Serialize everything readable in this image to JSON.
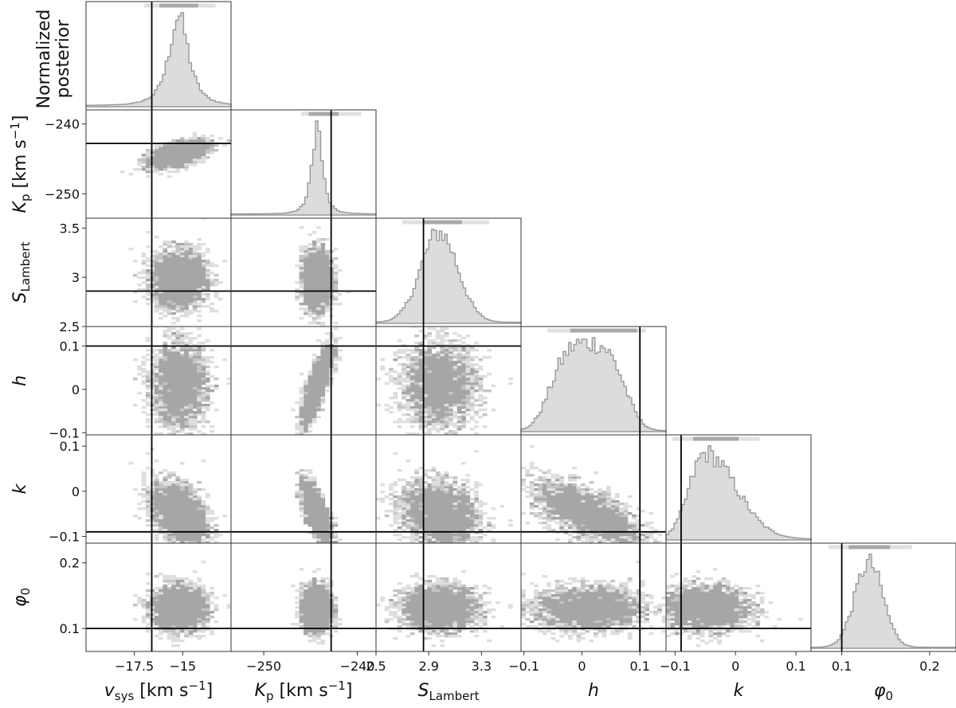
{
  "chart_data": {
    "type": "corner",
    "y_label_top": "Normalized\nposterior",
    "colors": {
      "hist_fill": "#dcdcdc",
      "hist_line": "#9a9a9a",
      "density_dark": "#a6a6a6",
      "density_light": "#dedede",
      "truth": "#000000"
    },
    "params": [
      {
        "key": "vsys",
        "label": {
          "main": "v",
          "sub": "sys",
          "unit": " [km s",
          "sup": "−1",
          "close": "]",
          "italic": true
        },
        "range": [
          -20.0,
          -12.5
        ],
        "ticks": [
          -17.5,
          -15.0
        ],
        "truth": -16.6,
        "mean": -15.2,
        "sd": 0.85,
        "hist_kind": "peaked",
        "bar_light": [
          -17.0,
          -13.3
        ],
        "bar_dark": [
          -16.2,
          -14.2
        ]
      },
      {
        "key": "Kp",
        "label": {
          "main": "K",
          "sub": "p",
          "unit": " [km s",
          "sup": "−1",
          "close": "]",
          "italic": true
        },
        "range": [
          -253.5,
          -238.0
        ],
        "ticks": [
          -250,
          -240
        ],
        "truth": -242.8,
        "mean": -244.3,
        "sd": 0.9,
        "hist_kind": "peaked",
        "bar_light": [
          -246.0,
          -239.6
        ],
        "bar_dark": [
          -245.2,
          -242.0
        ]
      },
      {
        "key": "SLambert",
        "label": {
          "main": "S",
          "sub": "Lambert",
          "unit": "",
          "sup": "",
          "close": "",
          "italic": true
        },
        "range": [
          2.5,
          3.6
        ],
        "ticks": [
          2.5,
          2.9,
          3.3
        ],
        "truth": 2.86,
        "mean": 2.98,
        "sd": 0.14,
        "hist_kind": "gauss",
        "bar_light": [
          2.7,
          3.36
        ],
        "bar_dark": [
          2.86,
          3.15
        ]
      },
      {
        "key": "h",
        "label": {
          "main": "h",
          "sub": "",
          "unit": "",
          "sup": "",
          "close": "",
          "italic": true
        },
        "range": [
          -0.105,
          0.145
        ],
        "ticks": [
          -0.1,
          0.0,
          0.1
        ],
        "truth": 0.1,
        "mean": 0.01,
        "sd": 0.045,
        "hist_kind": "broad",
        "bar_light": [
          -0.06,
          0.11
        ],
        "bar_dark": [
          -0.02,
          0.095
        ]
      },
      {
        "key": "k",
        "label": {
          "main": "k",
          "sub": "",
          "unit": "",
          "sup": "",
          "close": "",
          "italic": true
        },
        "range": [
          -0.115,
          0.125
        ],
        "ticks": [
          -0.1,
          0.0,
          0.1
        ],
        "truth": -0.09,
        "mean": -0.05,
        "sd": 0.035,
        "hist_kind": "skew",
        "bar_light": [
          -0.105,
          0.04
        ],
        "bar_dark": [
          -0.07,
          0.005
        ]
      },
      {
        "key": "phi0",
        "label": {
          "main": "φ",
          "sub": "0",
          "unit": "",
          "sup": "",
          "close": "",
          "italic": true
        },
        "range": [
          0.065,
          0.23
        ],
        "ticks": [
          0.1,
          0.2
        ],
        "truth": 0.1,
        "mean": 0.131,
        "sd": 0.016,
        "hist_kind": "gauss",
        "bar_light": [
          0.085,
          0.18
        ],
        "bar_dark": [
          0.108,
          0.155
        ]
      }
    ],
    "correlations": {
      "1_0": 0.65,
      "2_0": 0.0,
      "2_1": 0.0,
      "3_0": 0.0,
      "3_1": 0.85,
      "3_2": 0.0,
      "4_0": -0.45,
      "4_1": -0.8,
      "4_2": -0.2,
      "4_3": -0.65,
      "5_0": 0.0,
      "5_1": 0.0,
      "5_2": 0.0,
      "5_3": 0.0,
      "5_4": 0.0
    },
    "y_ticks": {
      "1": [
        -240,
        -250
      ],
      "2": [
        3.5,
        3.0,
        2.5
      ],
      "3": [
        0.1,
        0.0,
        -0.1
      ],
      "4": [
        0.1,
        0.0,
        -0.1
      ],
      "5": [
        0.2,
        0.1
      ]
    }
  }
}
